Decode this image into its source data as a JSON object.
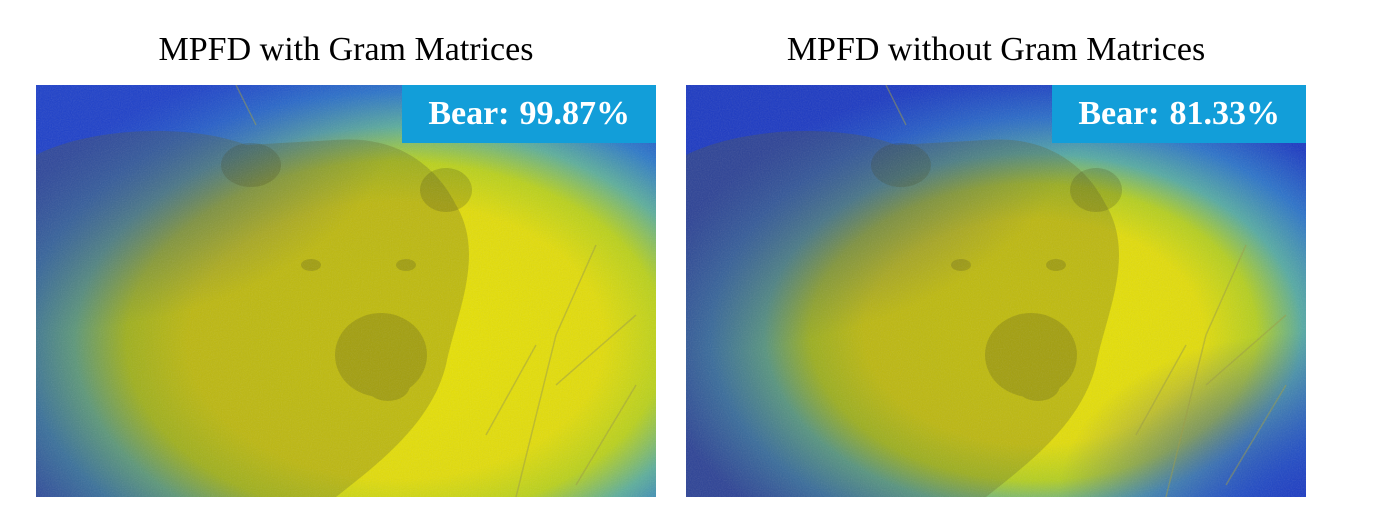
{
  "panels": [
    {
      "title": "MPFD with Gram Matrices",
      "prediction": {
        "label": "Bear:",
        "score": "99.87%"
      },
      "overlay_colors": {
        "low": "#1c3fc9",
        "mid": "#2f8fd0",
        "high": "#e6e000"
      }
    },
    {
      "title": "MPFD without Gram Matrices",
      "prediction": {
        "label": "Bear:",
        "score": "81.33%"
      },
      "overlay_colors": {
        "low": "#1a38c2",
        "mid": "#2f8fd0",
        "high": "#e6e000"
      }
    }
  ],
  "badge_color": "#129ed9"
}
